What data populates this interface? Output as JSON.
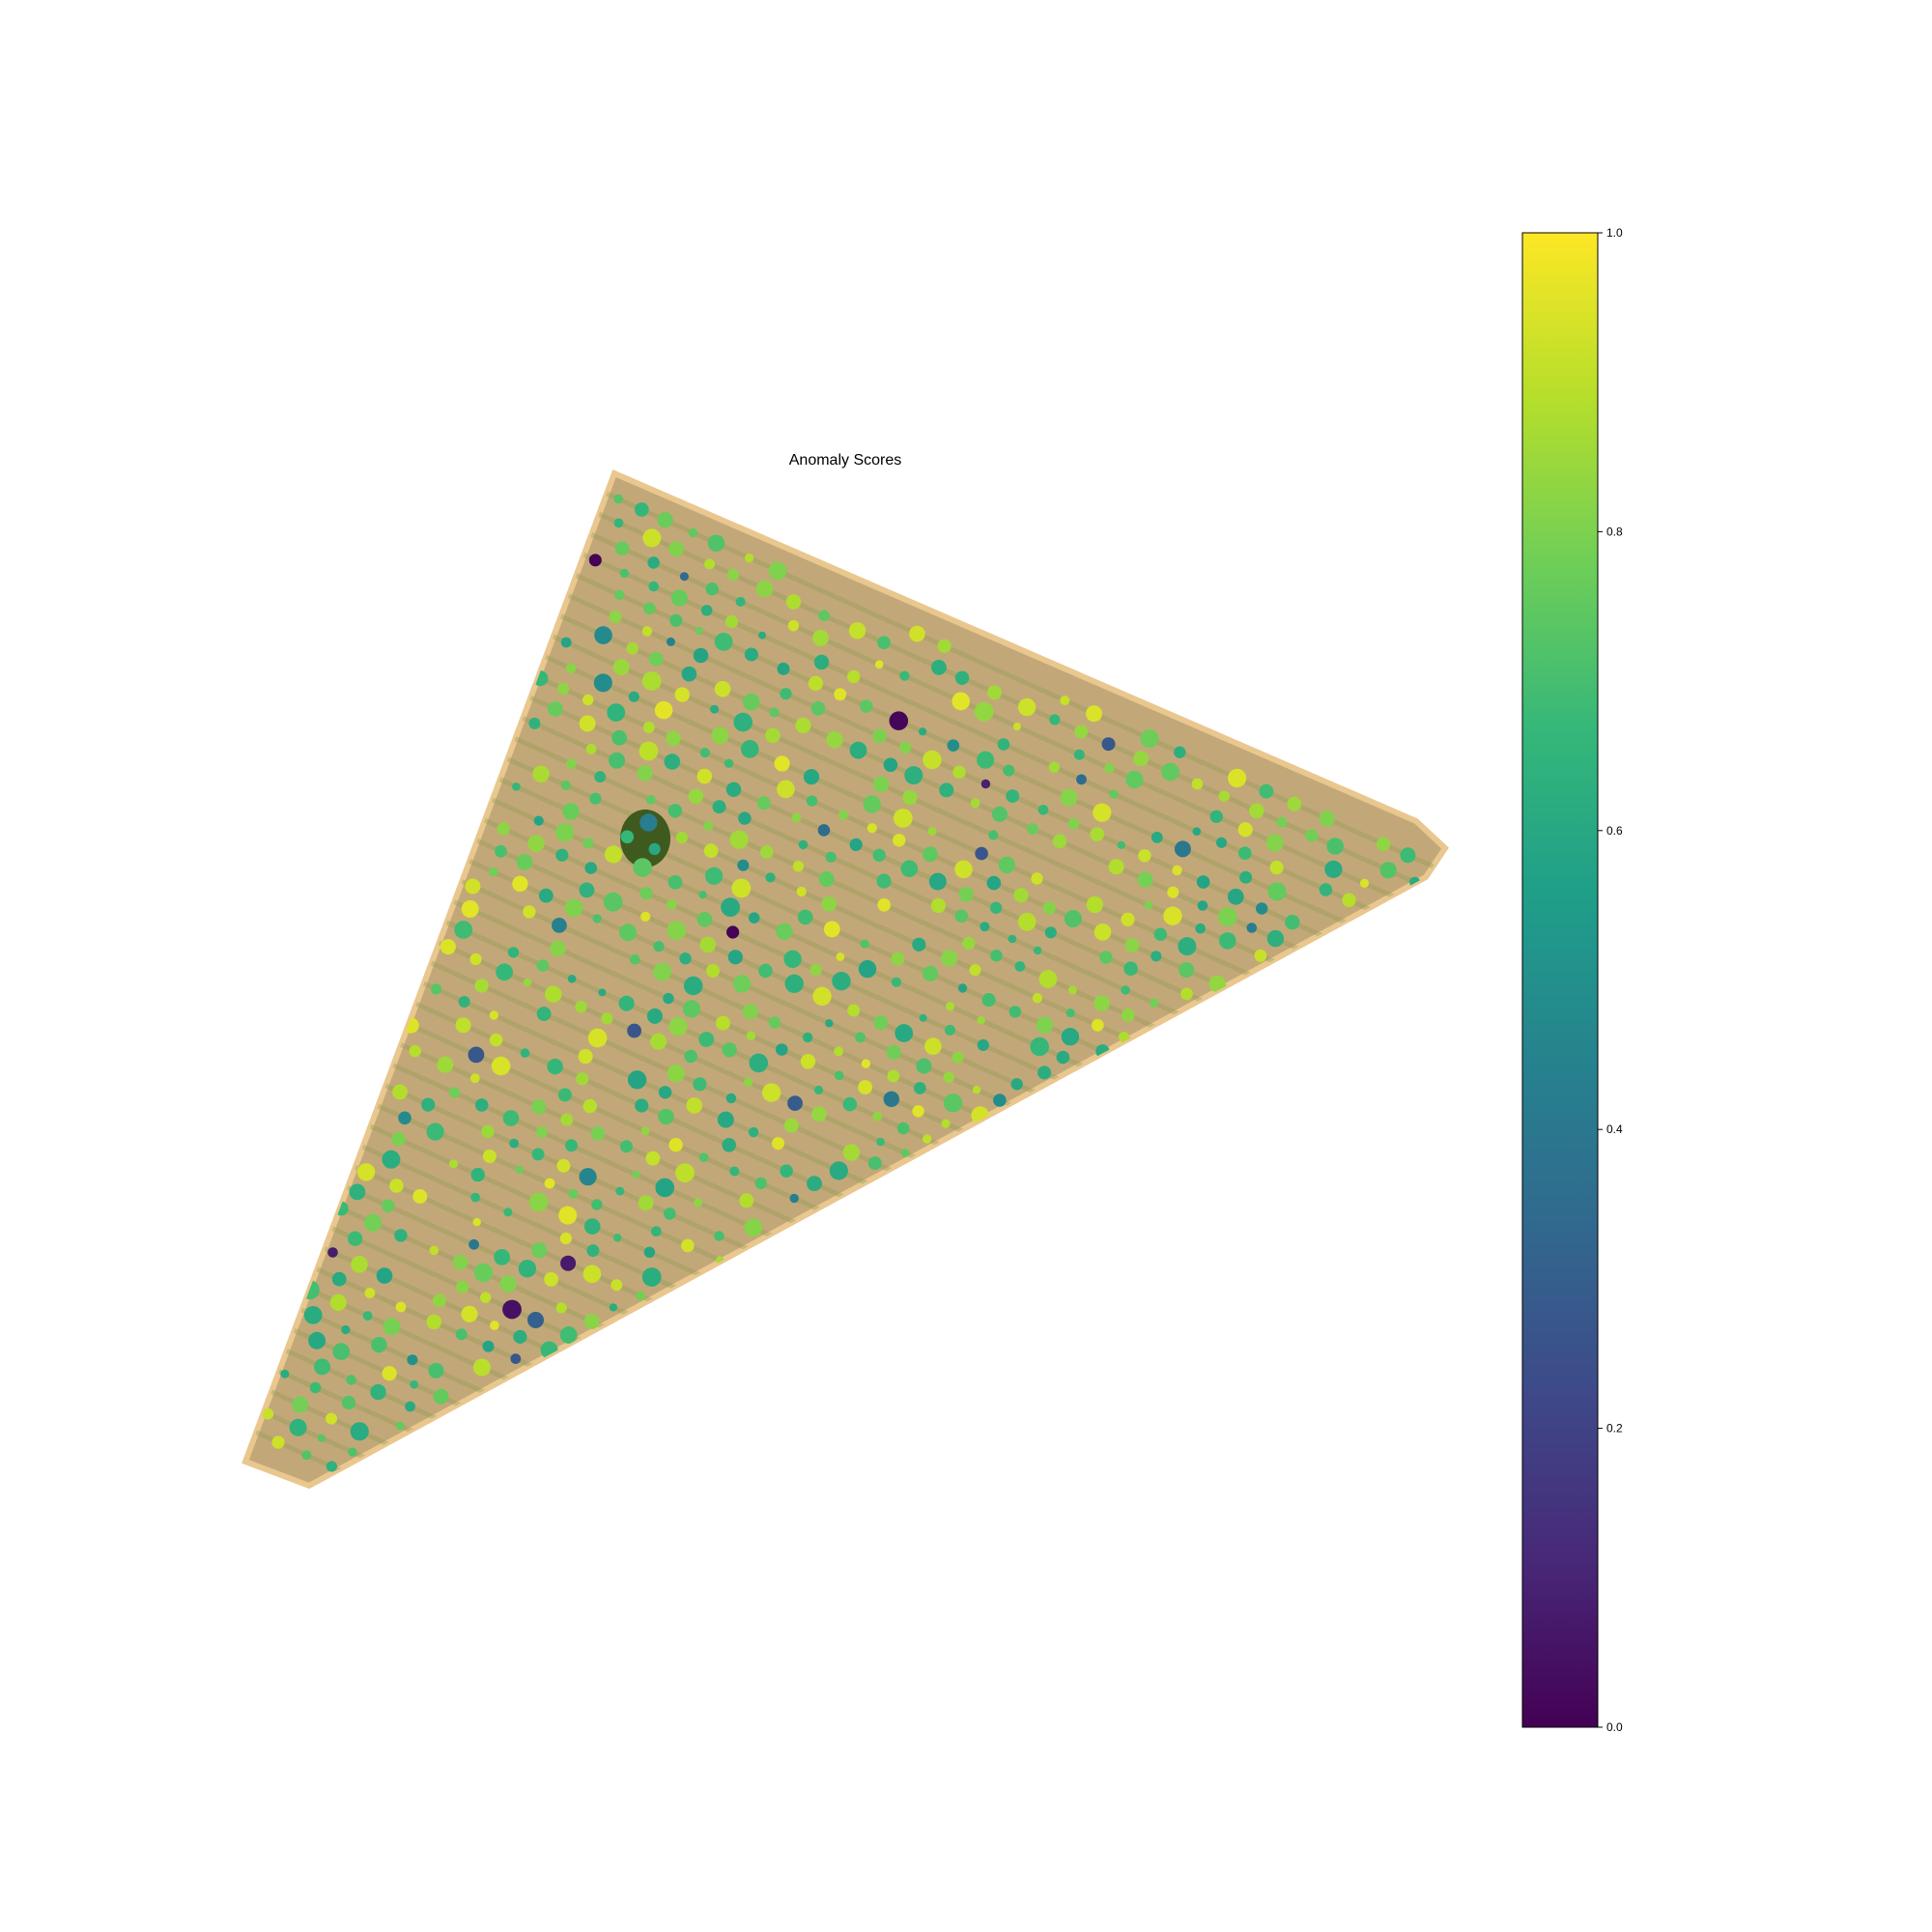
{
  "chart_data": {
    "type": "scatter",
    "title": "Anomaly Scores",
    "xlabel": "",
    "ylabel": "",
    "axes_visible": false,
    "background": "aerial orthophoto of an orchard field (triangular parcel)",
    "colormap": "viridis",
    "colormap_stops": [
      "#440154",
      "#482878",
      "#3e4989",
      "#31688e",
      "#26828e",
      "#1f9e89",
      "#35b779",
      "#6ece58",
      "#b5de2b",
      "#fde725"
    ],
    "colorbar": {
      "range": [
        0.0,
        1.0
      ],
      "ticks": [
        0.0,
        0.2,
        0.4,
        0.6,
        0.8,
        1.0
      ],
      "tick_labels": [
        "0.0",
        "0.2",
        "0.4",
        "0.6",
        "0.8",
        "1.0"
      ],
      "placement": "right"
    },
    "field_color": "#c2a878",
    "field_edge_color": "#e9c78e",
    "row_color": "#8c9a52",
    "canopy_color": "#3f5a1e",
    "score_distribution_note": "most tree scores between 0.55 and 0.95; a few low outliers near 0.0-0.3"
  }
}
